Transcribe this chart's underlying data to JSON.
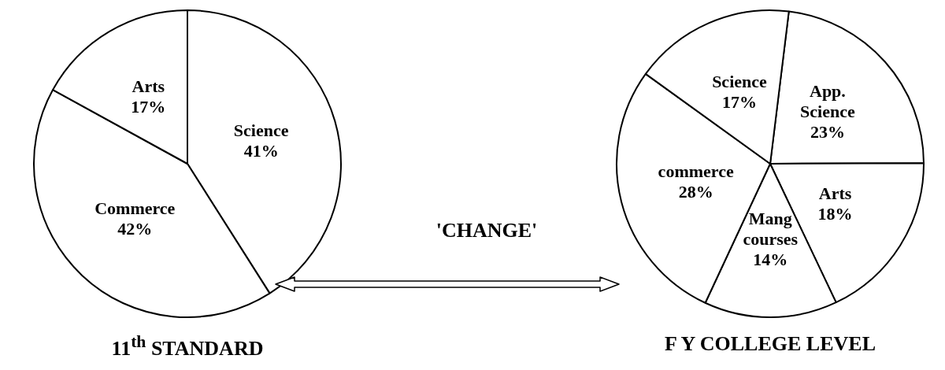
{
  "chart_data": [
    {
      "type": "pie",
      "title": "11$^{th}$ STANDARD",
      "categories": [
        "Science",
        "Commerce",
        "Arts"
      ],
      "values": [
        41,
        42,
        17
      ],
      "value_labels": [
        "41%",
        "42%",
        "17%"
      ],
      "colors": [
        "#ffffff",
        "#ffffff",
        "#ffffff"
      ],
      "annotations": [
        "'CHANGE'"
      ]
    },
    {
      "type": "pie",
      "title": "F Y COLLEGE LEVEL",
      "categories": [
        "App. Science",
        "Arts",
        "Mang courses",
        "commerce",
        "Science"
      ],
      "values": [
        23,
        18,
        14,
        28,
        17
      ],
      "value_labels": [
        "23%",
        "18%",
        "14%",
        "28%",
        "17%"
      ],
      "colors": [
        "#ffffff",
        "#ffffff",
        "#ffffff",
        "#ffffff",
        "#ffffff"
      ]
    }
  ]
}
